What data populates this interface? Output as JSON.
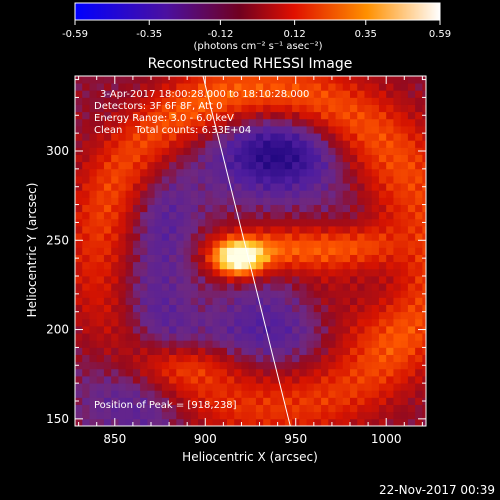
{
  "colorbar": {
    "tick_labels": [
      "-0.59",
      "-0.35",
      "-0.12",
      "0.12",
      "0.35",
      "0.59"
    ],
    "tick_values": [
      -0.59,
      -0.35,
      -0.12,
      0.12,
      0.35,
      0.59
    ],
    "range": [
      -0.59,
      0.59
    ],
    "unit_label": "(photons cm⁻² s⁻¹ asec⁻²)",
    "colors": [
      "#0000ff",
      "#4b0082",
      "#800000",
      "#ff2000",
      "#ffc000",
      "#ffffff"
    ]
  },
  "chart_data": {
    "type": "heatmap",
    "title": "Reconstructed RHESSI Image",
    "xlabel": "Heliocentric X (arcsec)",
    "ylabel": "Heliocentric Y (arcsec)",
    "xlim": [
      828,
      1022
    ],
    "ylim": [
      146,
      342
    ],
    "xticks": [
      850,
      900,
      950,
      1000
    ],
    "yticks": [
      150,
      200,
      250,
      300
    ],
    "annotations": [
      "3-Apr-2017 18:00:28.000 to 18:10:28.000",
      "Detectors: 3F 6F 8F, Att 0",
      "Energy Range: 3.0 - 6.0 keV",
      "Clean    Total counts: 6.33E+04"
    ],
    "peak_label": "Position of Peak = [918,238]",
    "peak": [
      918,
      238
    ],
    "limb_line": [
      [
        898,
        345
      ],
      [
        947,
        146
      ]
    ]
  },
  "footer": {
    "date": "22-Nov-2017 00:39"
  }
}
